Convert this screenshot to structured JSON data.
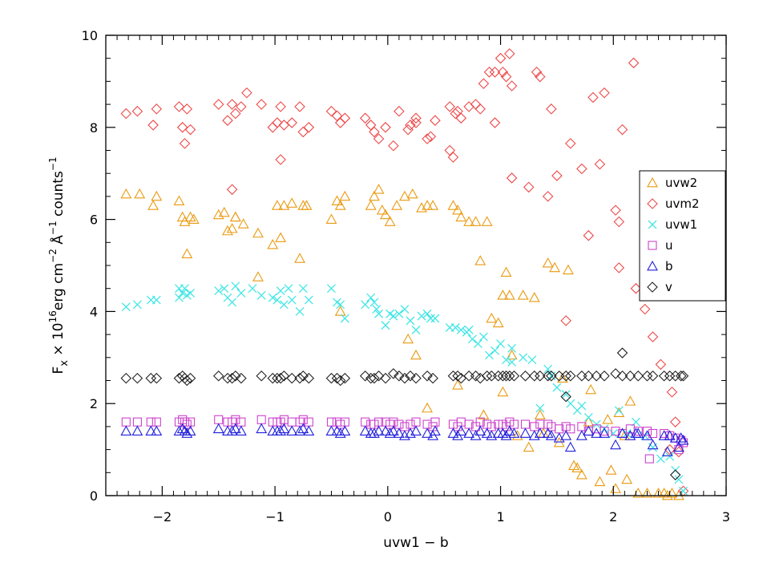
{
  "chart_data": {
    "type": "scatter",
    "xlabel": "uvw1 − b",
    "ylabel_parts": {
      "f": "F",
      "sub": "x",
      "times": " × 10",
      "exp": "16",
      "unit": "erg cm",
      "exp2": "−2",
      "ang": " Å",
      "exp3": "−1",
      "counts": "   counts",
      "exp4": "−1"
    },
    "xlim": [
      -2.5,
      3
    ],
    "ylim": [
      0,
      10
    ],
    "xticks": [
      -2,
      -1,
      0,
      1,
      2,
      3
    ],
    "yticks": [
      0,
      2,
      4,
      6,
      8,
      10
    ],
    "xtick_labels": [
      "−2",
      "−1",
      "0",
      "1",
      "2",
      "3"
    ],
    "ytick_labels": [
      "0",
      "2",
      "4",
      "6",
      "8",
      "10"
    ],
    "legend_position": "right",
    "series": [
      {
        "name": "uvw2",
        "marker": "triangle",
        "color": "#ea9a10",
        "x": [
          -2.32,
          -2.2,
          -2.08,
          -2.05,
          -1.85,
          -1.82,
          -1.8,
          -1.78,
          -1.75,
          -1.72,
          -1.5,
          -1.45,
          -1.42,
          -1.38,
          -1.35,
          -1.28,
          -1.15,
          -1.02,
          -0.98,
          -0.95,
          -0.92,
          -0.85,
          -0.78,
          -0.75,
          -0.72,
          -0.5,
          -0.45,
          -0.42,
          -0.38,
          -0.15,
          -0.12,
          -0.08,
          -0.05,
          -0.02,
          0.02,
          0.08,
          0.15,
          0.22,
          0.3,
          0.35,
          0.4,
          0.58,
          0.62,
          0.65,
          0.72,
          0.78,
          0.82,
          0.88,
          0.92,
          0.98,
          1.02,
          1.05,
          1.08,
          1.1,
          1.2,
          1.3,
          1.35,
          1.42,
          1.48,
          1.55,
          1.6,
          1.65,
          1.72,
          1.8,
          1.88,
          1.95,
          2.05,
          2.1,
          2.15,
          2.22,
          2.3,
          2.4,
          2.45,
          2.52,
          2.58,
          -1.15,
          -1.35,
          -0.42,
          0.18,
          0.25,
          0.35,
          0.62,
          0.85,
          1.02,
          1.15,
          1.25,
          1.38,
          1.52,
          1.68,
          1.78,
          1.98,
          2.02,
          2.12,
          2.48
        ],
        "y": [
          6.55,
          6.55,
          6.3,
          6.5,
          6.4,
          6.05,
          5.95,
          5.25,
          6.05,
          6.0,
          6.1,
          6.15,
          5.75,
          5.8,
          6.05,
          5.9,
          5.7,
          5.45,
          6.3,
          5.6,
          6.3,
          6.35,
          5.15,
          6.3,
          6.3,
          6.0,
          6.4,
          6.3,
          6.5,
          6.3,
          6.5,
          6.65,
          6.2,
          6.1,
          5.95,
          6.3,
          6.5,
          6.55,
          6.25,
          6.3,
          6.3,
          6.3,
          6.2,
          6.05,
          5.95,
          5.95,
          5.1,
          5.95,
          3.85,
          3.75,
          4.35,
          4.85,
          4.35,
          3.05,
          4.35,
          4.3,
          1.75,
          5.05,
          4.95,
          2.55,
          4.9,
          0.65,
          0.45,
          2.3,
          0.3,
          1.65,
          1.8,
          1.3,
          2.05,
          0.05,
          0.05,
          0.05,
          0.05,
          0.05,
          0.0,
          4.75,
          6.05,
          4.0,
          3.4,
          3.05,
          1.9,
          2.4,
          1.75,
          2.25,
          1.3,
          1.05,
          1.35,
          1.15,
          0.6,
          1.6,
          0.55,
          0.15,
          0.35,
          0.0
        ]
      },
      {
        "name": "uvm2",
        "marker": "diamond",
        "color": "#ee4a4a",
        "x": [
          -2.32,
          -2.22,
          -2.08,
          -2.05,
          -1.85,
          -1.82,
          -1.8,
          -1.78,
          -1.75,
          -1.5,
          -1.42,
          -1.38,
          -1.35,
          -1.3,
          -1.25,
          -1.12,
          -1.02,
          -0.98,
          -0.95,
          -0.92,
          -0.85,
          -0.78,
          -0.75,
          -0.7,
          -0.5,
          -0.45,
          -0.42,
          -0.38,
          -0.2,
          -0.15,
          -0.12,
          -0.08,
          -0.02,
          0.05,
          0.1,
          0.18,
          0.2,
          0.25,
          0.35,
          0.38,
          0.42,
          0.55,
          0.58,
          0.6,
          0.62,
          0.65,
          0.72,
          0.78,
          0.82,
          0.85,
          0.9,
          0.95,
          1.0,
          1.02,
          1.05,
          1.08,
          1.1,
          1.32,
          1.35,
          1.45,
          1.5,
          1.58,
          1.62,
          1.78,
          1.82,
          1.92,
          2.02,
          2.05,
          2.08,
          2.2,
          2.28,
          2.35,
          2.42,
          2.52,
          2.55,
          2.58,
          2.62,
          -1.38,
          -0.95,
          0.25,
          0.55,
          0.95,
          1.1,
          1.25,
          1.42,
          1.72,
          1.88,
          2.18,
          2.5,
          2.05
        ],
        "y": [
          8.3,
          8.35,
          8.05,
          8.4,
          8.45,
          8.0,
          7.65,
          8.4,
          7.95,
          8.5,
          8.15,
          8.5,
          8.3,
          8.45,
          8.75,
          8.5,
          8.0,
          8.1,
          8.45,
          8.05,
          8.1,
          8.45,
          7.9,
          8.0,
          8.35,
          8.25,
          8.1,
          8.2,
          8.2,
          8.05,
          7.9,
          7.75,
          8.0,
          7.6,
          8.35,
          7.95,
          8.05,
          8.2,
          7.75,
          7.8,
          8.15,
          8.45,
          7.35,
          8.3,
          8.35,
          8.2,
          8.45,
          8.5,
          8.4,
          8.95,
          9.2,
          9.2,
          9.5,
          9.2,
          9.1,
          9.6,
          8.9,
          9.2,
          9.1,
          8.4,
          6.95,
          3.8,
          7.65,
          5.65,
          8.65,
          8.75,
          6.2,
          4.95,
          7.95,
          4.5,
          4.05,
          3.45,
          2.85,
          2.25,
          1.6,
          0.95,
          0.1,
          6.65,
          7.3,
          8.1,
          7.5,
          8.1,
          6.9,
          6.7,
          6.5,
          7.1,
          7.2,
          9.4,
          1.0,
          5.95
        ]
      },
      {
        "name": "uvw1",
        "marker": "x",
        "color": "#44e6e6",
        "x": [
          -2.32,
          -2.22,
          -2.1,
          -2.05,
          -1.85,
          -1.82,
          -1.8,
          -1.78,
          -1.75,
          -1.5,
          -1.42,
          -1.38,
          -1.35,
          -1.3,
          -1.2,
          -1.12,
          -1.02,
          -0.98,
          -0.95,
          -0.92,
          -0.85,
          -0.78,
          -0.75,
          -0.7,
          -0.5,
          -0.45,
          -0.42,
          -0.38,
          -0.2,
          -0.15,
          -0.12,
          -0.08,
          -0.02,
          0.02,
          0.05,
          0.1,
          0.15,
          0.2,
          0.25,
          0.35,
          0.38,
          0.42,
          0.55,
          0.6,
          0.65,
          0.7,
          0.75,
          0.8,
          0.85,
          0.9,
          0.95,
          1.0,
          1.05,
          1.1,
          1.2,
          1.28,
          1.35,
          1.42,
          1.45,
          1.5,
          1.58,
          1.62,
          1.68,
          1.72,
          1.78,
          1.85,
          1.92,
          2.0,
          2.05,
          2.12,
          2.2,
          2.28,
          2.35,
          2.42,
          2.5,
          2.55,
          2.58,
          2.62,
          -1.85,
          -1.45,
          -0.88,
          -0.1,
          0.3,
          0.72,
          1.1
        ],
        "y": [
          4.1,
          4.15,
          4.25,
          4.25,
          4.3,
          4.4,
          4.5,
          4.35,
          4.4,
          4.45,
          4.3,
          4.2,
          4.55,
          4.4,
          4.5,
          4.35,
          4.3,
          4.25,
          4.45,
          4.15,
          4.25,
          4.0,
          4.5,
          4.25,
          4.5,
          4.2,
          4.15,
          3.85,
          4.15,
          4.3,
          4.2,
          3.95,
          3.7,
          3.95,
          3.9,
          3.95,
          4.05,
          3.8,
          3.6,
          3.95,
          3.85,
          3.85,
          3.65,
          3.65,
          3.6,
          3.55,
          3.4,
          3.3,
          3.45,
          3.05,
          3.15,
          3.3,
          2.95,
          2.9,
          3.0,
          2.95,
          1.9,
          2.75,
          2.6,
          2.35,
          2.2,
          2.0,
          1.85,
          1.95,
          1.7,
          1.55,
          1.45,
          1.35,
          1.85,
          1.35,
          1.6,
          1.3,
          1.05,
          0.8,
          0.85,
          0.55,
          0.35,
          0.1,
          4.5,
          4.5,
          4.5,
          4.05,
          3.9,
          3.6,
          3.2
        ]
      },
      {
        "name": "u",
        "marker": "square",
        "color": "#cc44cc",
        "x": [
          -2.32,
          -2.22,
          -2.1,
          -2.05,
          -1.85,
          -1.82,
          -1.8,
          -1.78,
          -1.75,
          -1.5,
          -1.42,
          -1.38,
          -1.35,
          -1.3,
          -1.12,
          -1.02,
          -0.98,
          -0.95,
          -0.92,
          -0.85,
          -0.78,
          -0.75,
          -0.7,
          -0.5,
          -0.45,
          -0.42,
          -0.38,
          -0.2,
          -0.15,
          -0.12,
          -0.08,
          -0.02,
          0.02,
          0.05,
          0.1,
          0.15,
          0.2,
          0.25,
          0.35,
          0.4,
          0.42,
          0.58,
          0.62,
          0.65,
          0.72,
          0.78,
          0.82,
          0.88,
          0.92,
          0.98,
          1.02,
          1.05,
          1.08,
          1.12,
          1.22,
          1.3,
          1.35,
          1.42,
          1.45,
          1.52,
          1.58,
          1.62,
          1.72,
          1.78,
          1.85,
          1.92,
          2.02,
          2.08,
          2.15,
          2.22,
          2.3,
          2.35,
          2.45,
          2.5,
          2.55,
          2.6,
          2.62,
          2.32,
          2.58
        ],
        "y": [
          1.6,
          1.6,
          1.6,
          1.6,
          1.6,
          1.65,
          1.6,
          1.55,
          1.6,
          1.65,
          1.6,
          1.6,
          1.65,
          1.6,
          1.65,
          1.6,
          1.6,
          1.6,
          1.65,
          1.6,
          1.6,
          1.65,
          1.6,
          1.6,
          1.6,
          1.55,
          1.6,
          1.6,
          1.55,
          1.55,
          1.6,
          1.6,
          1.55,
          1.6,
          1.55,
          1.5,
          1.55,
          1.6,
          1.55,
          1.5,
          1.6,
          1.55,
          1.5,
          1.6,
          1.55,
          1.5,
          1.6,
          1.55,
          1.5,
          1.55,
          1.55,
          1.5,
          1.6,
          1.55,
          1.55,
          1.5,
          1.55,
          1.55,
          1.5,
          1.45,
          1.5,
          1.45,
          1.5,
          1.4,
          1.45,
          1.4,
          1.4,
          1.35,
          1.45,
          1.4,
          1.4,
          1.35,
          1.35,
          1.3,
          1.25,
          1.2,
          1.15,
          0.8,
          1.0
        ]
      },
      {
        "name": "b",
        "marker": "triangle",
        "color": "#2020dd",
        "x": [
          -2.32,
          -2.22,
          -2.1,
          -2.05,
          -1.85,
          -1.82,
          -1.8,
          -1.78,
          -1.75,
          -1.5,
          -1.42,
          -1.38,
          -1.35,
          -1.3,
          -1.12,
          -1.02,
          -0.98,
          -0.95,
          -0.92,
          -0.85,
          -0.78,
          -0.75,
          -0.7,
          -0.5,
          -0.45,
          -0.42,
          -0.38,
          -0.2,
          -0.15,
          -0.12,
          -0.08,
          -0.02,
          0.02,
          0.05,
          0.1,
          0.15,
          0.2,
          0.25,
          0.35,
          0.4,
          0.42,
          0.58,
          0.62,
          0.65,
          0.72,
          0.78,
          0.82,
          0.88,
          0.92,
          0.98,
          1.02,
          1.05,
          1.08,
          1.12,
          1.22,
          1.3,
          1.35,
          1.42,
          1.45,
          1.52,
          1.58,
          1.62,
          1.72,
          1.78,
          1.85,
          1.92,
          2.02,
          2.08,
          2.15,
          2.22,
          2.3,
          2.35,
          2.45,
          2.5,
          2.55,
          2.6,
          2.62,
          2.2,
          2.58,
          2.48
        ],
        "y": [
          1.4,
          1.4,
          1.4,
          1.4,
          1.4,
          1.45,
          1.4,
          1.35,
          1.4,
          1.45,
          1.4,
          1.4,
          1.45,
          1.4,
          1.45,
          1.4,
          1.4,
          1.4,
          1.45,
          1.4,
          1.4,
          1.45,
          1.4,
          1.4,
          1.4,
          1.35,
          1.4,
          1.4,
          1.35,
          1.35,
          1.4,
          1.4,
          1.35,
          1.4,
          1.35,
          1.3,
          1.35,
          1.4,
          1.35,
          1.3,
          1.4,
          1.35,
          1.3,
          1.4,
          1.35,
          1.3,
          1.4,
          1.35,
          1.3,
          1.35,
          1.35,
          1.3,
          1.4,
          1.35,
          1.35,
          1.3,
          1.35,
          1.35,
          1.3,
          1.25,
          1.3,
          1.05,
          1.3,
          1.4,
          1.35,
          1.35,
          1.1,
          1.35,
          1.3,
          1.35,
          1.3,
          1.1,
          1.3,
          1.3,
          1.25,
          1.25,
          1.2,
          1.35,
          1.05,
          0.95
        ]
      },
      {
        "name": "v",
        "marker": "diamond",
        "color": "#222222",
        "x": [
          -2.32,
          -2.22,
          -2.1,
          -2.05,
          -1.85,
          -1.82,
          -1.8,
          -1.78,
          -1.75,
          -1.5,
          -1.42,
          -1.38,
          -1.35,
          -1.3,
          -1.12,
          -1.02,
          -0.98,
          -0.95,
          -0.92,
          -0.85,
          -0.78,
          -0.75,
          -0.7,
          -0.5,
          -0.45,
          -0.42,
          -0.38,
          -0.2,
          -0.15,
          -0.12,
          -0.08,
          -0.02,
          0.05,
          0.1,
          0.15,
          0.2,
          0.25,
          0.35,
          0.4,
          0.58,
          0.62,
          0.65,
          0.72,
          0.78,
          0.82,
          0.88,
          0.92,
          0.98,
          1.02,
          1.05,
          1.08,
          1.12,
          1.22,
          1.3,
          1.35,
          1.42,
          1.45,
          1.52,
          1.58,
          1.62,
          1.72,
          1.78,
          1.85,
          1.92,
          2.02,
          2.08,
          2.15,
          2.22,
          2.3,
          2.35,
          2.45,
          2.5,
          2.55,
          2.6,
          2.62,
          2.08,
          1.58,
          2.55
        ],
        "y": [
          2.55,
          2.55,
          2.55,
          2.55,
          2.55,
          2.6,
          2.55,
          2.5,
          2.55,
          2.6,
          2.55,
          2.55,
          2.6,
          2.55,
          2.6,
          2.55,
          2.55,
          2.55,
          2.6,
          2.55,
          2.55,
          2.6,
          2.55,
          2.55,
          2.55,
          2.5,
          2.55,
          2.6,
          2.55,
          2.55,
          2.6,
          2.55,
          2.65,
          2.6,
          2.55,
          2.6,
          2.55,
          2.6,
          2.55,
          2.6,
          2.6,
          2.55,
          2.6,
          2.6,
          2.55,
          2.6,
          2.6,
          2.6,
          2.6,
          2.6,
          2.6,
          2.6,
          2.6,
          2.6,
          2.6,
          2.6,
          2.6,
          2.6,
          2.6,
          2.6,
          2.6,
          2.6,
          2.6,
          2.6,
          2.65,
          2.6,
          2.6,
          2.6,
          2.6,
          2.6,
          2.6,
          2.6,
          2.6,
          2.6,
          2.6,
          3.1,
          2.15,
          0.45
        ]
      }
    ]
  }
}
